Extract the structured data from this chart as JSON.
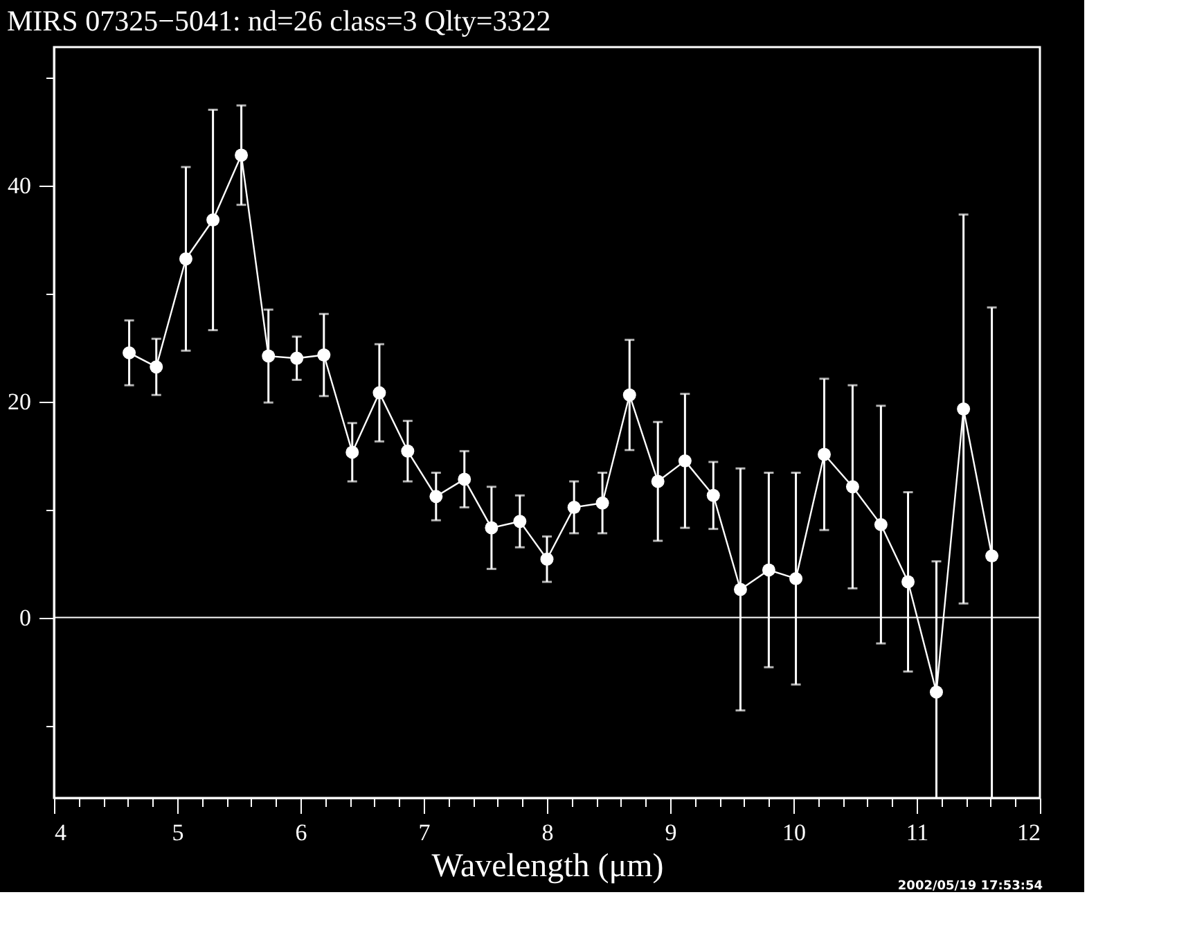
{
  "chart_data": {
    "type": "line",
    "title": "MIRS 07325−5041:    nd=26   class=3   Qlty=3322",
    "xlabel": "Wavelength (μm)",
    "x": [
      4.61,
      4.83,
      5.07,
      5.29,
      5.52,
      5.74,
      5.97,
      6.19,
      6.42,
      6.64,
      6.87,
      7.1,
      7.33,
      7.55,
      7.78,
      8.0,
      8.22,
      8.45,
      8.67,
      8.9,
      9.12,
      9.35,
      9.57,
      9.8,
      10.02,
      10.25,
      10.48,
      10.71,
      10.93,
      11.16,
      11.38,
      11.61
    ],
    "series": [
      {
        "color": "#ffffff",
        "values": [
          24.5,
          23.2,
          33.2,
          36.8,
          42.8,
          24.2,
          24.0,
          24.3,
          15.3,
          20.8,
          15.4,
          11.2,
          12.8,
          8.3,
          8.9,
          5.4,
          10.2,
          10.6,
          20.6,
          12.6,
          14.5,
          11.3,
          2.6,
          4.4,
          3.6,
          15.1,
          12.1,
          8.6,
          3.3,
          -6.9,
          19.3,
          5.7
        ],
        "errors": [
          3.0,
          2.6,
          8.5,
          10.2,
          4.6,
          4.3,
          2.0,
          3.8,
          2.7,
          4.5,
          2.8,
          2.2,
          2.6,
          3.8,
          2.4,
          2.1,
          2.4,
          2.8,
          5.1,
          5.5,
          6.2,
          3.1,
          11.2,
          9.0,
          9.8,
          7.0,
          9.4,
          11.0,
          8.3,
          [
            -16.7,
            5.2
          ],
          18.0,
          [
            -16.7,
            28.7
          ]
        ]
      }
    ],
    "marker": "circle",
    "line_style": "solid",
    "grid": false,
    "xlim": [
      4,
      12
    ],
    "ylim": [
      -16.7,
      52.8
    ],
    "xticks": [
      4,
      {
        "value": 4.2,
        "label": null
      },
      {
        "value": 4.4,
        "label": null
      },
      {
        "value": 4.6,
        "label": null
      },
      {
        "value": 4.8,
        "label": null
      },
      5,
      {
        "value": 5.2,
        "label": null
      },
      {
        "value": 5.4,
        "label": null
      },
      {
        "value": 5.6,
        "label": null
      },
      {
        "value": 5.8,
        "label": null
      },
      6,
      {
        "value": 6.2,
        "label": null
      },
      {
        "value": 6.4,
        "label": null
      },
      {
        "value": 6.6,
        "label": null
      },
      {
        "value": 6.8,
        "label": null
      },
      7,
      {
        "value": 7.2,
        "label": null
      },
      {
        "value": 7.4,
        "label": null
      },
      {
        "value": 7.6,
        "label": null
      },
      {
        "value": 7.8,
        "label": null
      },
      8,
      {
        "value": 8.2,
        "label": null
      },
      {
        "value": 8.4,
        "label": null
      },
      {
        "value": 8.6,
        "label": null
      },
      {
        "value": 8.8,
        "label": null
      },
      9,
      {
        "value": 9.2,
        "label": null
      },
      {
        "value": 9.4,
        "label": null
      },
      {
        "value": 9.6,
        "label": null
      },
      {
        "value": 9.8,
        "label": null
      },
      10,
      {
        "value": 10.2,
        "label": null
      },
      {
        "value": 10.4,
        "label": null
      },
      {
        "value": 10.6,
        "label": null
      },
      {
        "value": 10.8,
        "label": null
      },
      11,
      {
        "value": 11.2,
        "label": null
      },
      {
        "value": 11.4,
        "label": null
      },
      {
        "value": 11.6,
        "label": null
      },
      {
        "value": 11.8,
        "label": null
      },
      12
    ],
    "yticks": [
      {
        "value": -10,
        "label": null
      },
      0,
      {
        "value": 10,
        "label": null
      },
      20,
      {
        "value": 30,
        "label": null
      },
      40,
      {
        "value": 50,
        "label": null
      }
    ],
    "ref_lines": [
      {
        "axis": "y",
        "value": 0,
        "color": "#ffffff"
      }
    ],
    "annotations": [
      "2002/05/19 17:53:54"
    ]
  }
}
